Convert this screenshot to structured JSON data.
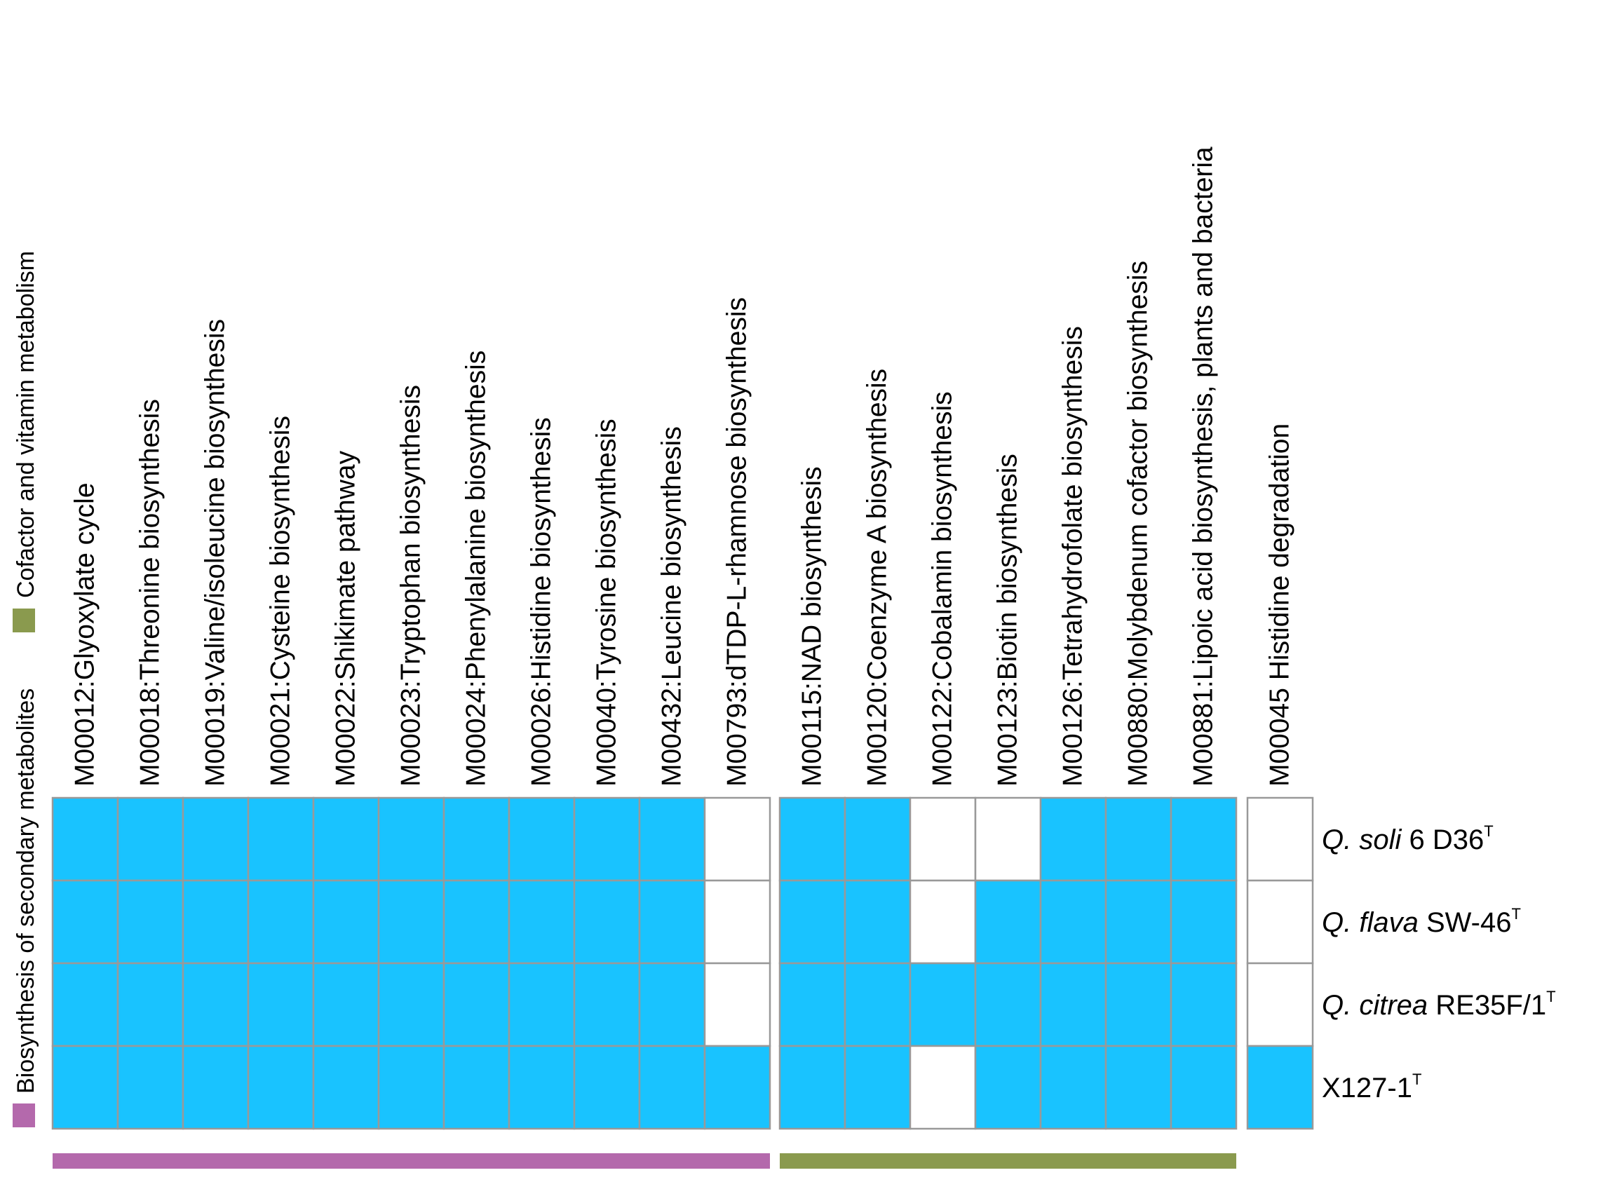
{
  "chart_data": {
    "type": "heatmap",
    "title": "",
    "legend": {
      "position": "left-vertical",
      "items": [
        {
          "label": "Biosynthesis of secondary metabolites",
          "color": "#b469ac"
        },
        {
          "label": "Cofactor and vitamin metabolism",
          "color": "#8a9a4e"
        }
      ]
    },
    "colors": {
      "present": "#19c3ff",
      "absent": "#ffffff",
      "grid": "#999999"
    },
    "groups": [
      {
        "name": "Biosynthesis of secondary metabolites",
        "color": "#b469ac",
        "columns": [
          "M00012:Glyoxylate cycle",
          "M00018:Threonine biosynthesis",
          "M00019:Valine/isoleucine biosynthesis",
          "M00021:Cysteine biosynthesis",
          "M00022:Shikimate pathway",
          "M00023:Tryptophan biosynthesis",
          "M00024:Phenylalanine biosynthesis",
          "M00026:Histidine biosynthesis",
          "M00040:Tyrosine biosynthesis",
          "M00432:Leucine biosynthesis",
          "M00793:dTDP-L-rhamnose biosynthesis"
        ],
        "values": [
          [
            1,
            1,
            1,
            1,
            1,
            1,
            1,
            1,
            1,
            1,
            0
          ],
          [
            1,
            1,
            1,
            1,
            1,
            1,
            1,
            1,
            1,
            1,
            0
          ],
          [
            1,
            1,
            1,
            1,
            1,
            1,
            1,
            1,
            1,
            1,
            0
          ],
          [
            1,
            1,
            1,
            1,
            1,
            1,
            1,
            1,
            1,
            1,
            1
          ]
        ]
      },
      {
        "name": "Cofactor and vitamin metabolism",
        "color": "#8a9a4e",
        "columns": [
          "M00115:NAD biosynthesis",
          "M00120:Coenzyme A biosynthesis",
          "M00122:Cobalamin biosynthesis",
          "M00123:Biotin biosynthesis",
          "M00126:Tetrahydrofolate biosynthesis",
          "M00880:Molybdenum cofactor biosynthesis",
          "M00881:Lipoic acid biosynthesis, plants and bacteria"
        ],
        "values": [
          [
            1,
            1,
            0,
            0,
            1,
            1,
            1
          ],
          [
            1,
            1,
            0,
            1,
            1,
            1,
            1
          ],
          [
            1,
            1,
            1,
            1,
            1,
            1,
            1
          ],
          [
            1,
            1,
            0,
            1,
            1,
            1,
            1
          ]
        ]
      },
      {
        "name": "",
        "color": null,
        "columns": [
          "M00045 Histidine degradation"
        ],
        "values": [
          [
            0
          ],
          [
            0
          ],
          [
            0
          ],
          [
            1
          ]
        ]
      }
    ],
    "rows": [
      {
        "italic": "Q. soli",
        "rest": " 6 D36",
        "sup": "T"
      },
      {
        "italic": "Q. flava",
        "rest": " SW-46",
        "sup": "T"
      },
      {
        "italic": "Q. citrea",
        "rest": " RE35F/1",
        "sup": "T"
      },
      {
        "italic": "",
        "rest": "X127-1",
        "sup": "T"
      }
    ]
  }
}
